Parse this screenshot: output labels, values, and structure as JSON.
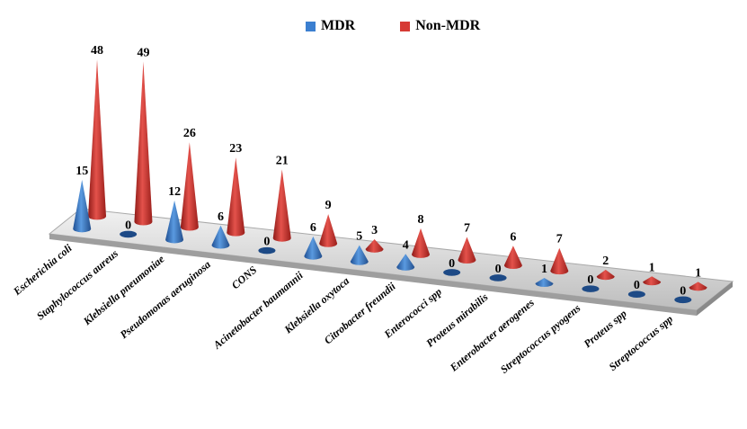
{
  "legend": {
    "mdr": "MDR",
    "non_mdr": "Non-MDR"
  },
  "colors": {
    "mdr": "#3b7fd0",
    "non_mdr": "#d63a34",
    "floor": "#d9d9d9"
  },
  "chart_data": {
    "type": "bar",
    "style": "3d-cone",
    "categories": [
      "Escherichia coli",
      "Staphylococcus aureus",
      "Klebsiella pneumoniae",
      "Pseudomonas aeruginosa",
      "CONS",
      "Acinetobacter baumannii",
      "Klebsiella oxytoca",
      "Citrobacter freundii",
      "Enterococci spp",
      "Proteus mirabilis",
      "Enterobacter aerogenes",
      "Streptococcus pyogens",
      "Proteus spp",
      "Streptococcus spp"
    ],
    "series": [
      {
        "name": "MDR",
        "values": [
          15,
          0,
          12,
          6,
          0,
          6,
          5,
          4,
          0,
          0,
          1,
          0,
          0,
          0
        ]
      },
      {
        "name": "Non-MDR",
        "values": [
          48,
          49,
          26,
          23,
          21,
          9,
          3,
          8,
          7,
          6,
          7,
          2,
          1,
          1
        ]
      }
    ],
    "legend_position": "top",
    "grid": false
  }
}
